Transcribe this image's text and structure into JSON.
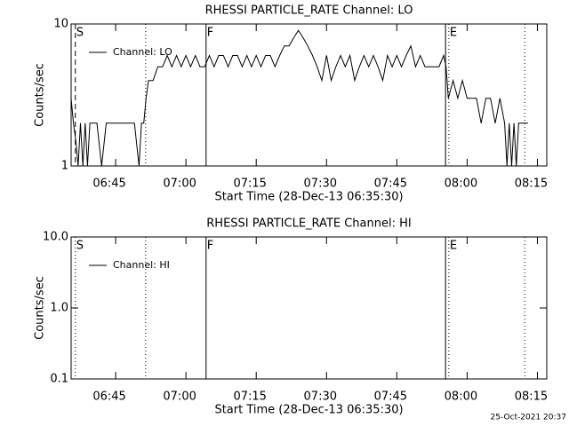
{
  "chart_data": [
    {
      "type": "line",
      "title": "RHESSI PARTICLE_RATE Channel: LO",
      "x_label": "Start Time (28-Dec-13 06:35:30)",
      "y_label": "Counts/sec",
      "log_y": true,
      "ylim": [
        1,
        10
      ],
      "yticks": [
        1,
        10
      ],
      "xlim": [
        395.5,
        497
      ],
      "xticks": [
        {
          "value": 405,
          "label": "06:45"
        },
        {
          "value": 420,
          "label": "07:00"
        },
        {
          "value": 435,
          "label": "07:15"
        },
        {
          "value": 450,
          "label": "07:30"
        },
        {
          "value": 465,
          "label": "07:45"
        },
        {
          "value": 480,
          "label": "08:00"
        },
        {
          "value": 495,
          "label": "08:15"
        }
      ],
      "vlines": [
        {
          "x": 396.4,
          "style": "dashed",
          "label": "S"
        },
        {
          "x": 411.4,
          "style": "dotted"
        },
        {
          "x": 424.3,
          "style": "solid",
          "label": "F"
        },
        {
          "x": 475.4,
          "style": "solid"
        },
        {
          "x": 476.1,
          "style": "dotted",
          "label": "E"
        },
        {
          "x": 492.3,
          "style": "dotted"
        }
      ],
      "x": [
        395.5,
        396,
        396.5,
        397,
        397.5,
        398,
        398.5,
        399,
        399.5,
        400,
        401,
        402,
        403,
        404,
        405,
        406,
        407,
        408,
        409,
        410,
        410.5,
        411,
        411.5,
        412,
        413,
        414,
        415,
        416,
        417,
        418,
        419,
        420,
        421,
        422,
        423,
        424,
        425,
        426,
        427,
        428,
        429,
        430,
        431,
        432,
        433,
        434,
        435,
        436,
        437,
        438,
        439,
        440,
        441,
        442,
        443,
        444,
        445,
        446,
        447,
        448,
        449,
        450,
        451,
        452,
        453,
        454,
        455,
        456,
        457,
        458,
        459,
        460,
        461,
        462,
        463,
        464,
        465,
        466,
        467,
        468,
        469,
        470,
        471,
        472,
        473,
        474,
        475,
        475.5,
        476,
        477,
        478,
        479,
        480,
        481,
        482,
        483,
        484,
        485,
        486,
        487,
        488,
        488.5,
        489,
        489.5,
        490,
        490.5,
        491,
        492,
        493
      ],
      "legend": "upper left",
      "series": [
        {
          "name": "Channel: LO",
          "color": "#000000",
          "values": [
            3,
            2,
            1.5,
            1,
            2,
            1,
            2,
            1,
            2,
            2,
            2,
            1,
            2,
            2,
            2,
            2,
            2,
            2,
            2,
            1,
            2,
            2,
            3,
            4,
            4,
            5,
            5,
            6,
            5,
            6,
            5,
            6,
            5,
            6,
            5,
            5,
            6,
            5,
            6,
            6,
            5,
            6,
            6,
            5,
            6,
            5,
            6,
            5,
            6,
            6,
            5,
            6,
            7,
            7,
            8,
            9,
            8,
            7,
            6,
            5,
            4,
            6,
            4,
            5,
            6,
            5,
            6,
            4,
            5,
            6,
            5,
            6,
            5,
            4,
            6,
            5,
            6,
            5,
            6,
            7,
            5,
            6,
            5,
            5,
            5,
            5,
            6,
            5,
            3,
            4,
            3,
            4,
            3,
            3,
            3,
            2,
            3,
            3,
            2,
            3,
            2,
            1,
            2,
            1,
            2,
            1,
            2,
            2,
            2
          ]
        }
      ]
    },
    {
      "type": "line",
      "title": "RHESSI PARTICLE_RATE Channel: HI",
      "x_label": "Start Time (28-Dec-13 06:35:30)",
      "y_label": "Counts/sec",
      "log_y": true,
      "ylim": [
        0.1,
        10
      ],
      "yticks": [
        {
          "value": 0.1,
          "label": "0.1"
        },
        {
          "value": 1,
          "label": "1.0"
        },
        {
          "value": 10,
          "label": "10.0"
        }
      ],
      "xlim": [
        395.5,
        497
      ],
      "xticks": [
        {
          "value": 405,
          "label": "06:45"
        },
        {
          "value": 420,
          "label": "07:00"
        },
        {
          "value": 435,
          "label": "07:15"
        },
        {
          "value": 450,
          "label": "07:30"
        },
        {
          "value": 465,
          "label": "07:45"
        },
        {
          "value": 480,
          "label": "08:00"
        },
        {
          "value": 495,
          "label": "08:15"
        }
      ],
      "vlines": [
        {
          "x": 396.4,
          "style": "dotted",
          "label": "S"
        },
        {
          "x": 411.4,
          "style": "dotted"
        },
        {
          "x": 424.3,
          "style": "solid",
          "label": "F"
        },
        {
          "x": 475.4,
          "style": "solid"
        },
        {
          "x": 476.1,
          "style": "dotted",
          "label": "E"
        },
        {
          "x": 492.3,
          "style": "dotted"
        }
      ],
      "x": [],
      "legend": "upper left",
      "series": [
        {
          "name": "Channel: HI",
          "color": "#000000",
          "values": []
        }
      ]
    }
  ],
  "footer": "25-Oct-2021 20:37"
}
